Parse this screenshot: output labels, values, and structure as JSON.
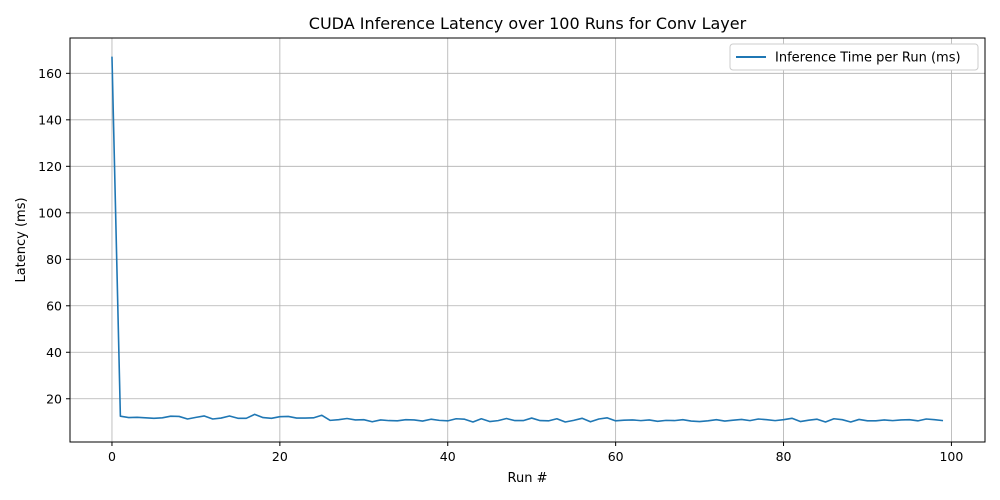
{
  "chart_data": {
    "type": "line",
    "title": "CUDA Inference Latency over 100 Runs for Conv Layer",
    "xlabel": "Run #",
    "ylabel": "Latency (ms)",
    "xlim": [
      -5,
      104
    ],
    "ylim": [
      1.4,
      175.2
    ],
    "xticks": [
      0,
      20,
      40,
      60,
      80,
      100
    ],
    "yticks": [
      20,
      40,
      60,
      80,
      100,
      120,
      140,
      160
    ],
    "grid": true,
    "legend_position": "top-right",
    "colors": {
      "series": "#1f77b4",
      "grid": "#b0b0b0",
      "axis": "#000000"
    },
    "series": [
      {
        "name": "Inference Time per Run (ms)",
        "x": [
          0,
          1,
          2,
          3,
          4,
          5,
          6,
          7,
          8,
          9,
          10,
          11,
          12,
          13,
          14,
          15,
          16,
          17,
          18,
          19,
          20,
          21,
          22,
          23,
          24,
          25,
          26,
          27,
          28,
          29,
          30,
          31,
          32,
          33,
          34,
          35,
          36,
          37,
          38,
          39,
          40,
          41,
          42,
          43,
          44,
          45,
          46,
          47,
          48,
          49,
          50,
          51,
          52,
          53,
          54,
          55,
          56,
          57,
          58,
          59,
          60,
          61,
          62,
          63,
          64,
          65,
          66,
          67,
          68,
          69,
          70,
          71,
          72,
          73,
          74,
          75,
          76,
          77,
          78,
          79,
          80,
          81,
          82,
          83,
          84,
          85,
          86,
          87,
          88,
          89,
          90,
          91,
          92,
          93,
          94,
          95,
          96,
          97,
          98,
          99
        ],
        "values": [
          167.2,
          12.5,
          11.9,
          12.0,
          11.8,
          11.6,
          11.8,
          12.5,
          12.4,
          11.3,
          12.0,
          12.6,
          11.3,
          11.7,
          12.6,
          11.6,
          11.6,
          13.3,
          11.9,
          11.6,
          12.3,
          12.4,
          11.7,
          11.7,
          11.8,
          12.9,
          10.7,
          11.0,
          11.5,
          10.9,
          11.0,
          10.1,
          10.9,
          10.6,
          10.5,
          11.0,
          10.9,
          10.4,
          11.2,
          10.7,
          10.5,
          11.4,
          11.2,
          10.0,
          11.4,
          10.2,
          10.6,
          11.5,
          10.6,
          10.6,
          11.7,
          10.6,
          10.5,
          11.4,
          10.0,
          10.7,
          11.6,
          10.1,
          11.3,
          11.8,
          10.5,
          10.8,
          10.9,
          10.6,
          10.9,
          10.3,
          10.7,
          10.6,
          11.0,
          10.4,
          10.2,
          10.5,
          11.0,
          10.4,
          10.8,
          11.1,
          10.6,
          11.3,
          11.0,
          10.6,
          11.0,
          11.6,
          10.2,
          10.8,
          11.2,
          10.0,
          11.4,
          11.0,
          10.0,
          11.1,
          10.5,
          10.5,
          10.9,
          10.6,
          10.9,
          11.0,
          10.5,
          11.3,
          11.0,
          10.6
        ]
      }
    ]
  }
}
